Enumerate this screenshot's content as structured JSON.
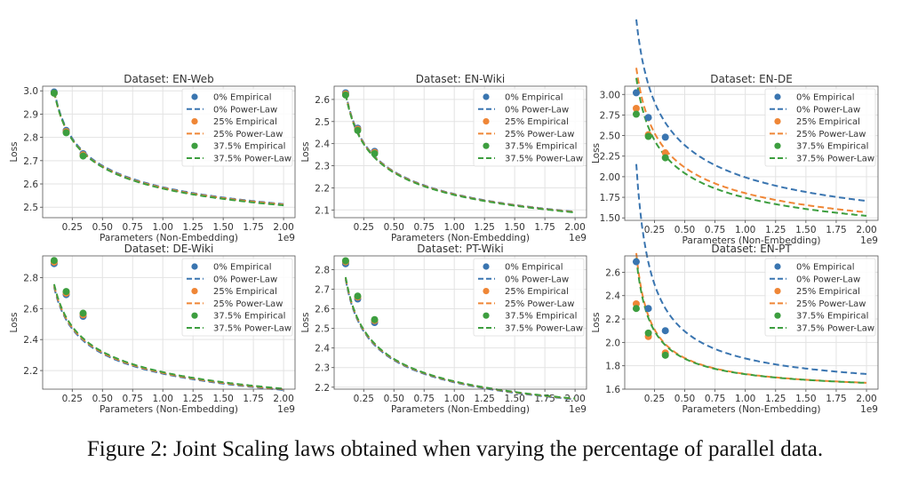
{
  "caption": "Figure 2: Joint Scaling laws obtained when varying the percentage of parallel data.",
  "colors": {
    "s0": "#3a75b0",
    "s25": "#ef8636",
    "s37": "#3d9e3f"
  },
  "chart_data": [
    {
      "type": "scatter+line",
      "title": "Dataset: EN-Web",
      "xlabel": "Parameters (Non-Embedding)",
      "ylabel": "Loss",
      "x_offset_label": "1e9",
      "xlim": [
        0.005,
        2.095
      ],
      "ylim": [
        2.455,
        3.02
      ],
      "xticks": [
        0.25,
        0.5,
        0.75,
        1.0,
        1.25,
        1.5,
        1.75,
        2.0
      ],
      "xtick_labels": [
        "0.25",
        "0.50",
        "0.75",
        "1.00",
        "1.25",
        "1.50",
        "1.75",
        "2.00"
      ],
      "yticks": [
        2.5,
        2.6,
        2.7,
        2.8,
        2.9,
        3.0
      ],
      "ytick_labels": [
        "2.5",
        "2.6",
        "2.7",
        "2.8",
        "2.9",
        "3.0"
      ],
      "grid": true,
      "legend": "top-right",
      "series": [
        {
          "name": "0%",
          "empirical_x": [
            0.1,
            0.2,
            0.34
          ],
          "empirical_y": [
            2.995,
            2.83,
            2.73
          ],
          "powerlaw": {
            "E": 2.25,
            "A": 0.336,
            "alpha": 0.35
          }
        },
        {
          "name": "25%",
          "empirical_x": [
            0.1,
            0.2,
            0.34
          ],
          "empirical_y": [
            2.99,
            2.825,
            2.725
          ],
          "powerlaw": {
            "E": 2.25,
            "A": 0.333,
            "alpha": 0.35
          }
        },
        {
          "name": "37.5%",
          "empirical_x": [
            0.1,
            0.2,
            0.34
          ],
          "empirical_y": [
            2.99,
            2.82,
            2.72
          ],
          "powerlaw": {
            "E": 2.25,
            "A": 0.33,
            "alpha": 0.355
          }
        }
      ]
    },
    {
      "type": "scatter+line",
      "title": "Dataset: EN-Wiki",
      "xlabel": "Parameters (Non-Embedding)",
      "ylabel": "Loss",
      "x_offset_label": "1e9",
      "xlim": [
        0.005,
        2.095
      ],
      "ylim": [
        2.065,
        2.66
      ],
      "xticks": [
        0.25,
        0.5,
        0.75,
        1.0,
        1.25,
        1.5,
        1.75,
        2.0
      ],
      "xtick_labels": [
        "0.25",
        "0.50",
        "0.75",
        "1.00",
        "1.25",
        "1.50",
        "1.75",
        "2.00"
      ],
      "yticks": [
        2.1,
        2.2,
        2.3,
        2.4,
        2.5,
        2.6
      ],
      "ytick_labels": [
        "2.1",
        "2.2",
        "2.3",
        "2.4",
        "2.5",
        "2.6"
      ],
      "grid": true,
      "legend": "top-right",
      "series": [
        {
          "name": "0%",
          "empirical_x": [
            0.1,
            0.2,
            0.34
          ],
          "empirical_y": [
            2.63,
            2.47,
            2.365
          ],
          "powerlaw": {
            "E": 1.8,
            "A": 0.372,
            "alpha": 0.35
          }
        },
        {
          "name": "25%",
          "empirical_x": [
            0.1,
            0.2,
            0.34
          ],
          "empirical_y": [
            2.625,
            2.465,
            2.36
          ],
          "powerlaw": {
            "E": 1.8,
            "A": 0.37,
            "alpha": 0.35
          }
        },
        {
          "name": "37.5%",
          "empirical_x": [
            0.1,
            0.2,
            0.34
          ],
          "empirical_y": [
            2.62,
            2.46,
            2.355
          ],
          "powerlaw": {
            "E": 1.8,
            "A": 0.368,
            "alpha": 0.35
          }
        }
      ]
    },
    {
      "type": "scatter+line",
      "title": "Dataset: EN-DE",
      "xlabel": "Parameters (Non-Embedding)",
      "ylabel": "Loss",
      "x_offset_label": "1e9",
      "xlim": [
        0.005,
        2.095
      ],
      "ylim": [
        1.47,
        3.1
      ],
      "xticks": [
        0.25,
        0.5,
        0.75,
        1.0,
        1.25,
        1.5,
        1.75,
        2.0
      ],
      "xtick_labels": [
        "0.25",
        "0.50",
        "0.75",
        "1.00",
        "1.25",
        "1.50",
        "1.75",
        "2.00"
      ],
      "yticks": [
        1.5,
        1.75,
        2.0,
        2.25,
        2.5,
        2.75,
        3.0
      ],
      "ytick_labels": [
        "1.50",
        "1.75",
        "2.00",
        "2.25",
        "2.50",
        "2.75",
        "3.00"
      ],
      "grid": true,
      "legend": "top-right",
      "series": [
        {
          "name": "0%",
          "empirical_x": [
            0.1,
            0.2,
            0.34
          ],
          "empirical_y": [
            3.02,
            2.72,
            2.48
          ],
          "powerlaw": {
            "E": 0.9,
            "A": 1.093,
            "alpha": 0.44
          }
        },
        {
          "name": "25%",
          "empirical_x": [
            0.1,
            0.2,
            0.34
          ],
          "empirical_y": [
            2.83,
            2.51,
            2.29
          ],
          "powerlaw": {
            "E": 0.9,
            "A": 0.9,
            "alpha": 0.43
          }
        },
        {
          "name": "37.5%",
          "empirical_x": [
            0.1,
            0.2,
            0.34
          ],
          "empirical_y": [
            2.76,
            2.49,
            2.23
          ],
          "powerlaw": {
            "E": 0.9,
            "A": 0.845,
            "alpha": 0.435
          }
        }
      ]
    },
    {
      "type": "scatter+line",
      "title": "Dataset: DE-Wiki",
      "xlabel": "Parameters (Non-Embedding)",
      "ylabel": "Loss",
      "x_offset_label": "1e9",
      "xlim": [
        0.005,
        2.095
      ],
      "ylim": [
        2.08,
        2.94
      ],
      "xticks": [
        0.25,
        0.5,
        0.75,
        1.0,
        1.25,
        1.5,
        1.75,
        2.0
      ],
      "xtick_labels": [
        "0.25",
        "0.50",
        "0.75",
        "1.00",
        "1.25",
        "1.50",
        "1.75",
        "2.00"
      ],
      "yticks": [
        2.2,
        2.4,
        2.6,
        2.8
      ],
      "ytick_labels": [
        "2.2",
        "2.4",
        "2.6",
        "2.8"
      ],
      "grid": true,
      "legend": "top-right",
      "series": [
        {
          "name": "0%",
          "empirical_x": [
            0.1,
            0.2,
            0.34
          ],
          "empirical_y": [
            2.89,
            2.69,
            2.55
          ],
          "powerlaw": {
            "E": 1.62,
            "A": 0.56,
            "alpha": 0.3
          }
        },
        {
          "name": "25%",
          "empirical_x": [
            0.1,
            0.2,
            0.34
          ],
          "empirical_y": [
            2.9,
            2.7,
            2.56
          ],
          "powerlaw": {
            "E": 1.62,
            "A": 0.565,
            "alpha": 0.3
          }
        },
        {
          "name": "37.5%",
          "empirical_x": [
            0.1,
            0.2,
            0.34
          ],
          "empirical_y": [
            2.91,
            2.71,
            2.57
          ],
          "powerlaw": {
            "E": 1.62,
            "A": 0.57,
            "alpha": 0.3
          }
        }
      ]
    },
    {
      "type": "scatter+line",
      "title": "Dataset: PT-Wiki",
      "xlabel": "Parameters (Non-Embedding)",
      "ylabel": "Loss",
      "x_offset_label": "1e9",
      "xlim": [
        0.005,
        2.095
      ],
      "ylim": [
        2.19,
        2.87
      ],
      "xticks": [
        0.25,
        0.5,
        0.75,
        1.0,
        1.25,
        1.5,
        1.75,
        2.0
      ],
      "xtick_labels": [
        "0.25",
        "0.50",
        "0.75",
        "1.00",
        "1.25",
        "1.50",
        "1.75",
        "2.00"
      ],
      "yticks": [
        2.2,
        2.3,
        2.4,
        2.5,
        2.6,
        2.7,
        2.8
      ],
      "ytick_labels": [
        "2.2",
        "2.3",
        "2.4",
        "2.5",
        "2.6",
        "2.7",
        "2.8"
      ],
      "grid": true,
      "legend": "top-right",
      "series": [
        {
          "name": "0%",
          "empirical_x": [
            0.1,
            0.2,
            0.34
          ],
          "empirical_y": [
            2.83,
            2.65,
            2.53
          ],
          "powerlaw": {
            "E": 1.85,
            "A": 0.375,
            "alpha": 0.38
          }
        },
        {
          "name": "25%",
          "empirical_x": [
            0.1,
            0.2,
            0.34
          ],
          "empirical_y": [
            2.84,
            2.66,
            2.54
          ],
          "powerlaw": {
            "E": 1.85,
            "A": 0.378,
            "alpha": 0.38
          }
        },
        {
          "name": "37.5%",
          "empirical_x": [
            0.1,
            0.2,
            0.34
          ],
          "empirical_y": [
            2.845,
            2.665,
            2.545
          ],
          "powerlaw": {
            "E": 1.85,
            "A": 0.38,
            "alpha": 0.38
          }
        }
      ]
    },
    {
      "type": "scatter+line",
      "title": "Dataset: EN-PT",
      "xlabel": "Parameters (Non-Embedding)",
      "ylabel": "Loss",
      "x_offset_label": "1e9",
      "xlim": [
        0.005,
        2.095
      ],
      "ylim": [
        1.6,
        2.74
      ],
      "xticks": [
        0.25,
        0.5,
        0.75,
        1.0,
        1.25,
        1.5,
        1.75,
        2.0
      ],
      "xtick_labels": [
        "0.25",
        "0.50",
        "0.75",
        "1.00",
        "1.25",
        "1.50",
        "1.75",
        "2.00"
      ],
      "yticks": [
        1.6,
        1.8,
        2.0,
        2.2,
        2.4,
        2.6
      ],
      "ytick_labels": [
        "1.6",
        "1.8",
        "2.0",
        "2.2",
        "2.4",
        "2.6"
      ],
      "grid": true,
      "legend": "top-right",
      "series": [
        {
          "name": "0%",
          "empirical_x": [
            0.1,
            0.2,
            0.34
          ],
          "empirical_y": [
            2.69,
            2.29,
            2.1
          ],
          "powerlaw": {
            "E": 1.55,
            "A": 0.313,
            "alpha": 0.8
          }
        },
        {
          "name": "25%",
          "empirical_x": [
            0.1,
            0.2,
            0.34
          ],
          "empirical_y": [
            2.33,
            2.05,
            1.91
          ],
          "powerlaw": {
            "E": 1.56,
            "A": 0.17,
            "alpha": 0.85
          }
        },
        {
          "name": "37.5%",
          "empirical_x": [
            0.1,
            0.2,
            0.34
          ],
          "empirical_y": [
            2.29,
            2.08,
            1.89
          ],
          "powerlaw": {
            "E": 1.56,
            "A": 0.168,
            "alpha": 0.84
          }
        }
      ]
    }
  ],
  "legend_labels": [
    "0% Empirical",
    "0% Power-Law",
    "25% Empirical",
    "25% Power-Law",
    "37.5% Empirical",
    "37.5% Power-Law"
  ]
}
